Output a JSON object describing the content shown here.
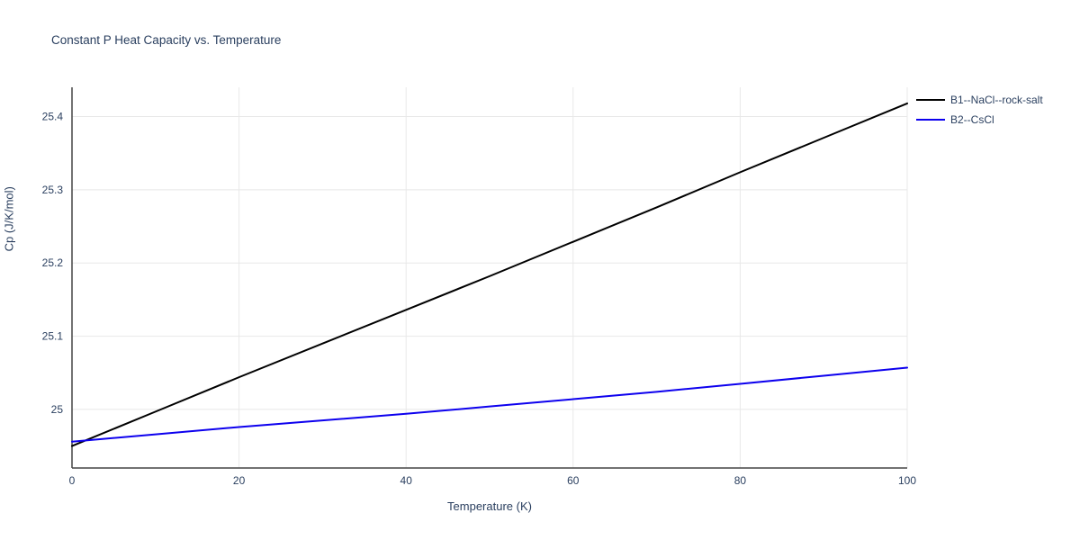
{
  "style": {
    "background": "#ffffff",
    "text_color": "#2a3f5f",
    "tick_label_color": "#2a3f5f",
    "grid_color": "#e8e8e8",
    "axis_color": "#444444"
  },
  "chart_data": {
    "type": "line",
    "title": "Constant P Heat Capacity vs. Temperature",
    "xlabel": "Temperature (K)",
    "ylabel": "Cp (J/K/mol)",
    "xlim": [
      0,
      100
    ],
    "ylim": [
      24.92,
      25.44
    ],
    "xticks": [
      0,
      20,
      40,
      60,
      80,
      100
    ],
    "yticks": [
      25,
      25.1,
      25.2,
      25.3,
      25.4
    ],
    "grid": true,
    "legend_position": "top-right",
    "series": [
      {
        "name": "B1--NaCl--rock-salt",
        "color": "#000000",
        "x": [
          0,
          10,
          20,
          30,
          40,
          50,
          60,
          70,
          80,
          90,
          100
        ],
        "y": [
          24.95,
          24.997,
          25.044,
          25.09,
          25.136,
          25.182,
          25.229,
          25.276,
          25.324,
          25.371,
          25.418
        ]
      },
      {
        "name": "B2--CsCl",
        "color": "#0d00ee",
        "x": [
          0,
          10,
          20,
          30,
          40,
          50,
          60,
          70,
          80,
          90,
          100
        ],
        "y": [
          24.956,
          24.966,
          24.976,
          24.985,
          24.994,
          25.004,
          25.014,
          25.024,
          25.035,
          25.046,
          25.057
        ]
      }
    ]
  }
}
